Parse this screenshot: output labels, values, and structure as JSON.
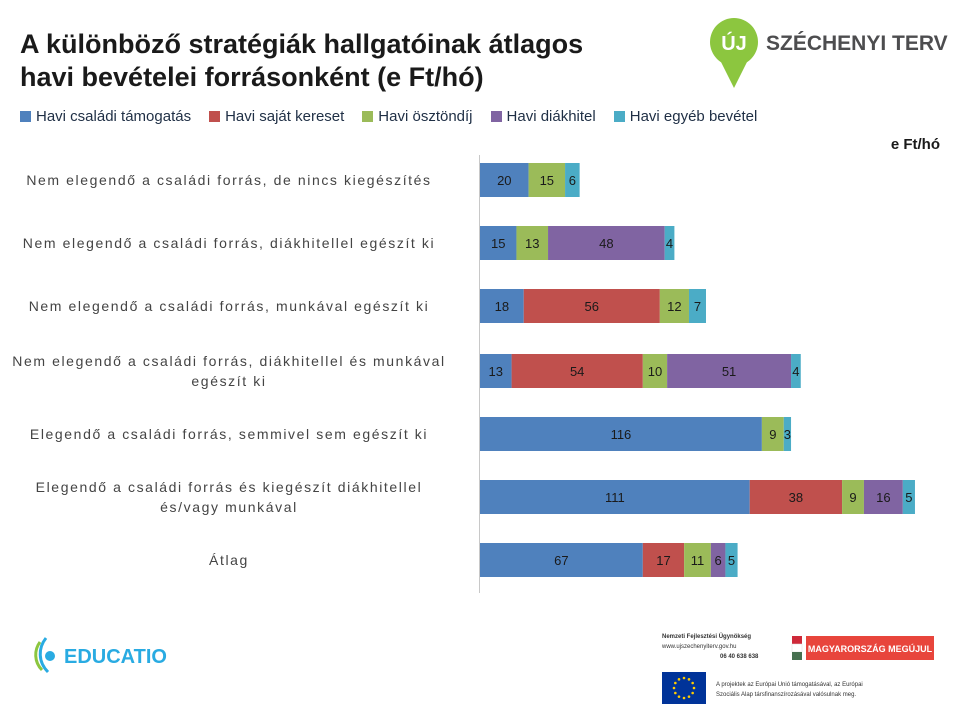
{
  "title_line1": "A különböző stratégiák hallgatóinak átlagos",
  "title_line2": "havi bevételei forrásonként (e Ft/hó)",
  "unit_label": "e Ft/hó",
  "logos": {
    "szechenyi": "SZÉCHENYI TERV",
    "szechenyi_badge": "ÚJ",
    "educatio": "EDUCATIO",
    "nfu_line1": "Nemzeti Fejlesztési Ügynökség",
    "nfu_line2": "www.ujszechenyiterv.gov.hu",
    "nfu_line3": "06 40 638 638",
    "hungary": "MAGYARORSZÁG MEGÚJUL",
    "eu_line1": "A projektek az Európai Unió támogatásával, az Európai",
    "eu_line2": "Szociális Alap társfinanszírozásával valósulnak meg."
  },
  "colors": {
    "csaladi": "#4f81bd",
    "sajat": "#c0504d",
    "osztondij": "#9bbb59",
    "diakhitel": "#8064a2",
    "egyeb": "#4bacc6"
  },
  "chart_data": {
    "type": "bar",
    "orientation": "horizontal",
    "stacked": true,
    "categories": [
      "Nem elegendő a családi forrás, de nincs kiegészítés",
      "Nem elegendő a családi forrás, diákhitellel egészít ki",
      "Nem elegendő a családi forrás, munkával egészít ki",
      "Nem elegendő a családi forrás, diákhitellel és munkával egészít ki",
      "Elegendő a családi forrás, semmivel sem egészít ki",
      "Elegendő a családi forrás és kiegészít diákhitellel és/vagy munkával",
      "Átlag"
    ],
    "category_lines": [
      [
        "Nem elegendő a családi forrás, de nincs kiegészítés"
      ],
      [
        "Nem elegendő a családi forrás, diákhitellel egészít ki"
      ],
      [
        "Nem elegendő a családi forrás, munkával egészít ki"
      ],
      [
        "Nem elegendő a családi forrás, diákhitellel és munkával",
        "egészít ki"
      ],
      [
        "Elegendő a családi forrás, semmivel sem egészít ki"
      ],
      [
        "Elegendő a családi forrás és kiegészít diákhitellel",
        "és/vagy munkával"
      ],
      [
        "Átlag"
      ]
    ],
    "series": [
      {
        "name": "Havi családi támogatás",
        "color": "#4f81bd",
        "values": [
          20,
          15,
          18,
          13,
          116,
          111,
          67
        ]
      },
      {
        "name": "Havi saját kereset",
        "color": "#c0504d",
        "values": [
          0,
          0,
          56,
          54,
          0,
          38,
          17
        ]
      },
      {
        "name": "Havi ösztöndíj",
        "color": "#9bbb59",
        "values": [
          15,
          13,
          12,
          10,
          9,
          9,
          11
        ]
      },
      {
        "name": "Havi diákhitel",
        "color": "#8064a2",
        "values": [
          0,
          48,
          0,
          51,
          0,
          16,
          6
        ]
      },
      {
        "name": "Havi egyéb bevétel",
        "color": "#4bacc6",
        "values": [
          6,
          4,
          7,
          4,
          3,
          5,
          5
        ]
      }
    ],
    "xlim": [
      0,
      180
    ],
    "legend_position": "top",
    "grid": false,
    "data_labels": true
  }
}
